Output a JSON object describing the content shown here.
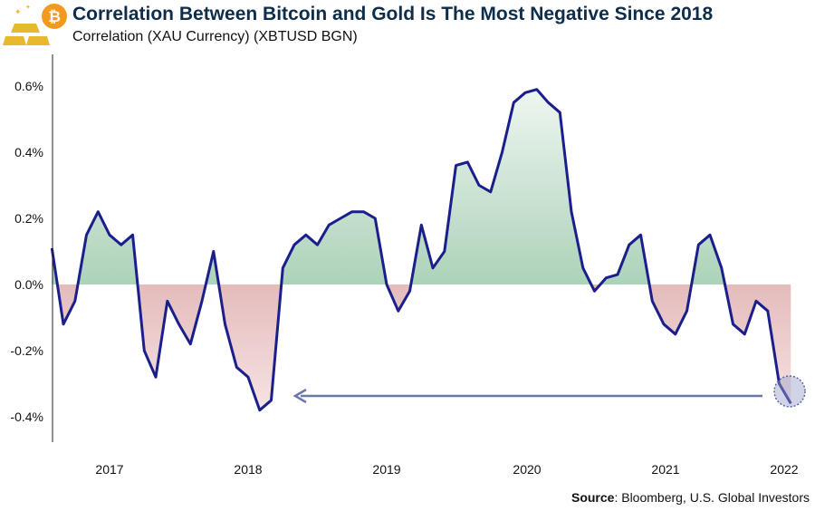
{
  "title": "Correlation Between Bitcoin and Gold Is The Most Negative Since 2018",
  "subtitle": "Correlation (XAU Currency) (XBTUSD BGN)",
  "source_label": "Source",
  "source_text": ": Bloomberg, U.S. Global Investors",
  "logo": "gold-bars-and-bitcoin-icon",
  "colors": {
    "line": "#1a1f8c",
    "positive_fill": "#82bb96",
    "negative_fill": "#c97e7e",
    "arrow": "#6b78a8"
  },
  "chart_data": {
    "type": "area",
    "title": "Correlation Between Bitcoin and Gold Is The Most Negative Since 2018",
    "ylabel": "",
    "xlabel": "",
    "ylim": [
      -0.45,
      0.68
    ],
    "yticks": [
      "0.6%",
      "0.4%",
      "0.2%",
      "0.0%",
      "-0.2%",
      "-0.4%"
    ],
    "ytick_values": [
      0.6,
      0.4,
      0.2,
      0.0,
      -0.2,
      -0.4
    ],
    "xticks": [
      "2017",
      "2018",
      "2019",
      "2020",
      "2021",
      "2022"
    ],
    "grid": false,
    "annotation": "arrow from latest value back to 2018 low; circled latest value",
    "series": [
      {
        "x": [
          "2016-08",
          "2016-09",
          "2016-10",
          "2016-11",
          "2016-12",
          "2017-01",
          "2017-02",
          "2017-03",
          "2017-04",
          "2017-05",
          "2017-06",
          "2017-07",
          "2017-08",
          "2017-09",
          "2017-10",
          "2017-11",
          "2017-12",
          "2018-01",
          "2018-02",
          "2018-03",
          "2018-04",
          "2018-05",
          "2018-06",
          "2018-07",
          "2018-08",
          "2018-09",
          "2018-10",
          "2018-11",
          "2018-12",
          "2019-01",
          "2019-02",
          "2019-03",
          "2019-04",
          "2019-05",
          "2019-06",
          "2019-07",
          "2019-08",
          "2019-09",
          "2019-10",
          "2019-11",
          "2019-12",
          "2020-01",
          "2020-02",
          "2020-03",
          "2020-04",
          "2020-05",
          "2020-06",
          "2020-07",
          "2020-08",
          "2020-09",
          "2020-10",
          "2020-11",
          "2020-12",
          "2021-01",
          "2021-02",
          "2021-03",
          "2021-04",
          "2021-05",
          "2021-06",
          "2021-07",
          "2021-08",
          "2021-09",
          "2021-10",
          "2021-11",
          "2021-12"
        ],
        "values": [
          0.11,
          -0.12,
          -0.05,
          0.15,
          0.22,
          0.15,
          0.12,
          0.15,
          -0.2,
          -0.28,
          -0.05,
          -0.12,
          -0.18,
          -0.05,
          0.1,
          -0.12,
          -0.25,
          -0.28,
          -0.38,
          -0.35,
          0.05,
          0.12,
          0.15,
          0.12,
          0.18,
          0.2,
          0.22,
          0.22,
          0.2,
          0.0,
          -0.08,
          -0.02,
          0.18,
          0.05,
          0.1,
          0.36,
          0.37,
          0.3,
          0.28,
          0.4,
          0.55,
          0.58,
          0.59,
          0.55,
          0.52,
          0.22,
          0.05,
          -0.02,
          0.02,
          0.03,
          0.12,
          0.15,
          -0.05,
          -0.12,
          -0.15,
          -0.08,
          0.12,
          0.15,
          0.05,
          -0.12,
          -0.15,
          -0.05,
          -0.08,
          -0.3,
          -0.36
        ]
      }
    ]
  }
}
